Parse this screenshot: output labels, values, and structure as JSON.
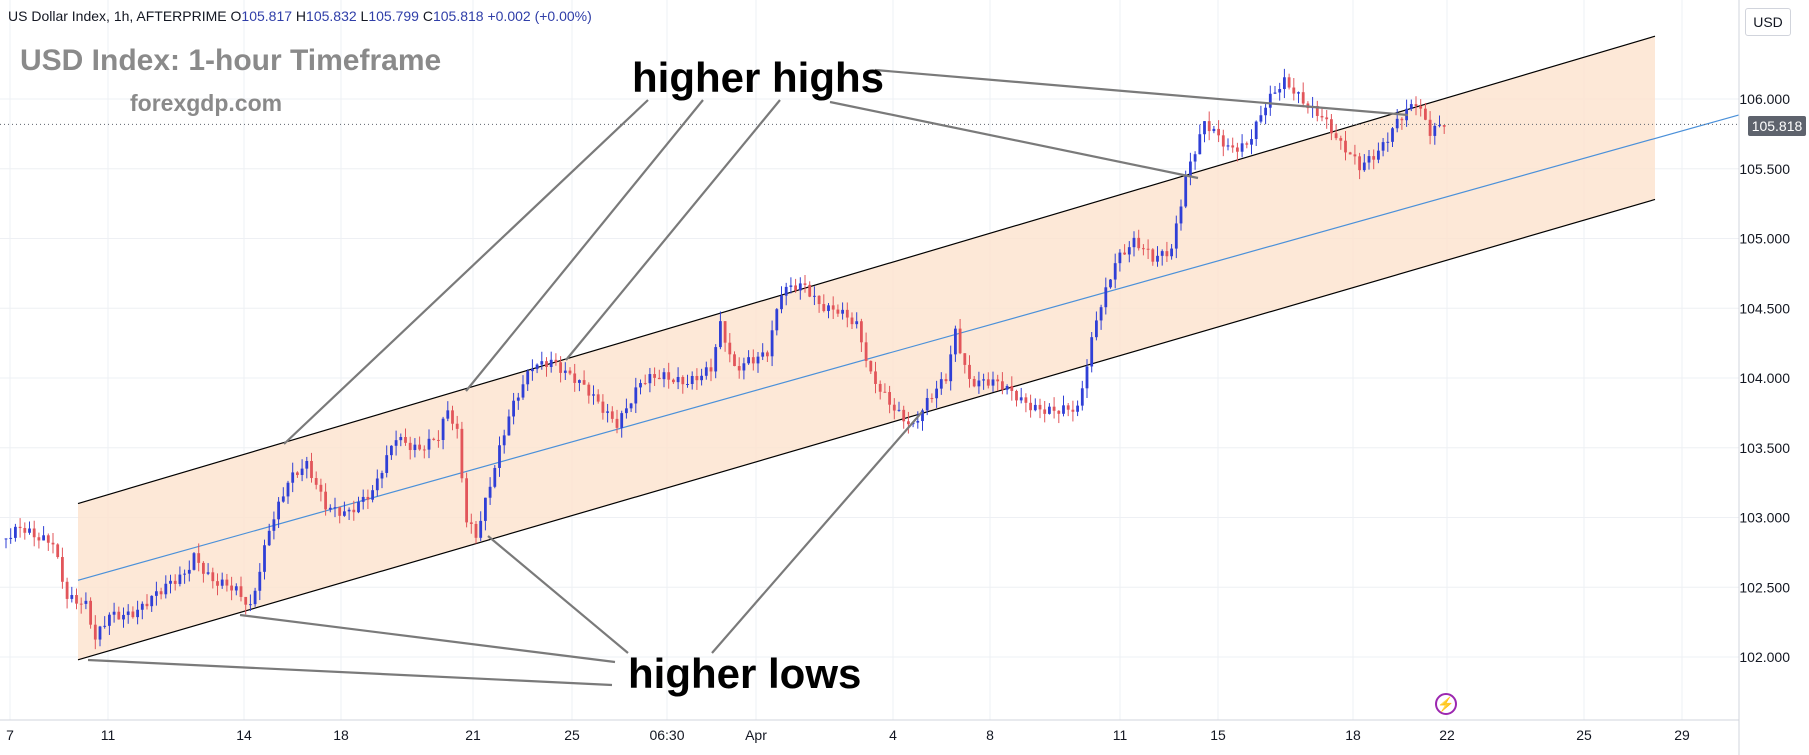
{
  "legend": {
    "symbol": "US Dollar Index, 1h, AFTERPRIME",
    "o_label": "O",
    "o_value": "105.817",
    "h_label": "H",
    "h_value": "105.832",
    "l_label": "L",
    "l_value": "105.799",
    "c_label": "C",
    "c_value": "105.818",
    "change": "+0.002 (+0.00%)"
  },
  "heading": {
    "title": "USD Index: 1-hour Timeframe",
    "site": "forexgdp.com"
  },
  "annotations": {
    "highs": "higher highs",
    "lows": "higher lows"
  },
  "currency_button": "USD",
  "price_tag": "105.818",
  "icons": {
    "event": "lightning-bolt-icon"
  },
  "colors": {
    "channel_fill": "#fde2cd",
    "channel_line": "#000000",
    "mid_line": "#4a90d9",
    "bull": "#2f3fd6",
    "bear": "#e2555a",
    "grid": "#eef0f4",
    "pointer": "#7a7a7a"
  },
  "chart_data": {
    "type": "candlestick",
    "series_name": "US Dollar Index, 1h",
    "x_tick_labels": [
      "7",
      "11",
      "14",
      "18",
      "21",
      "25",
      "06:30",
      "Apr",
      "4",
      "8",
      "11",
      "15",
      "18",
      "22",
      "25",
      "29"
    ],
    "y_tick_labels": [
      "106.000",
      "105.500",
      "105.000",
      "104.500",
      "104.000",
      "103.500",
      "103.000",
      "102.500",
      "102.000"
    ],
    "ylim": [
      101.6,
      106.6
    ],
    "last_price": 105.818,
    "channel": {
      "upper_start": 103.1,
      "upper_end": 106.45,
      "lower_start": 101.98,
      "lower_end": 105.28,
      "mid_start": 102.55,
      "mid_end": 105.85
    },
    "price_path": [
      [
        0,
        102.85
      ],
      [
        3,
        102.9
      ],
      [
        6,
        102.85
      ],
      [
        10,
        102.85
      ],
      [
        13,
        102.45
      ],
      [
        17,
        102.35
      ],
      [
        19,
        102.1
      ],
      [
        22,
        102.3
      ],
      [
        28,
        102.35
      ],
      [
        33,
        102.45
      ],
      [
        38,
        102.6
      ],
      [
        40,
        102.75
      ],
      [
        44,
        102.55
      ],
      [
        49,
        102.45
      ],
      [
        52,
        102.35
      ],
      [
        56,
        102.95
      ],
      [
        60,
        103.25
      ],
      [
        64,
        103.35
      ],
      [
        68,
        103.1
      ],
      [
        73,
        103.05
      ],
      [
        78,
        103.15
      ],
      [
        83,
        103.6
      ],
      [
        88,
        103.5
      ],
      [
        92,
        103.55
      ],
      [
        94,
        103.75
      ],
      [
        96,
        103.6
      ],
      [
        98,
        103.0
      ],
      [
        100,
        102.9
      ],
      [
        103,
        103.25
      ],
      [
        107,
        103.7
      ],
      [
        112,
        104.1
      ],
      [
        116,
        104.15
      ],
      [
        120,
        104.0
      ],
      [
        125,
        103.85
      ],
      [
        130,
        103.7
      ],
      [
        135,
        103.95
      ],
      [
        140,
        104.0
      ],
      [
        145,
        104.0
      ],
      [
        150,
        104.05
      ],
      [
        152,
        104.35
      ],
      [
        155,
        104.05
      ],
      [
        158,
        104.15
      ],
      [
        162,
        104.2
      ],
      [
        165,
        104.6
      ],
      [
        170,
        104.65
      ],
      [
        173,
        104.55
      ],
      [
        177,
        104.5
      ],
      [
        181,
        104.35
      ],
      [
        184,
        104.0
      ],
      [
        188,
        103.85
      ],
      [
        193,
        103.65
      ],
      [
        196,
        103.8
      ],
      [
        200,
        104.0
      ],
      [
        202,
        104.35
      ],
      [
        205,
        104.0
      ],
      [
        210,
        103.95
      ],
      [
        213,
        103.9
      ],
      [
        216,
        103.85
      ],
      [
        220,
        103.8
      ],
      [
        224,
        103.75
      ],
      [
        228,
        103.75
      ],
      [
        232,
        104.45
      ],
      [
        236,
        104.85
      ],
      [
        240,
        104.95
      ],
      [
        244,
        104.85
      ],
      [
        248,
        104.95
      ],
      [
        251,
        105.45
      ],
      [
        255,
        105.8
      ],
      [
        260,
        105.65
      ],
      [
        264,
        105.7
      ],
      [
        268,
        105.95
      ],
      [
        272,
        106.1
      ],
      [
        276,
        106.0
      ],
      [
        280,
        105.9
      ],
      [
        284,
        105.65
      ],
      [
        288,
        105.5
      ],
      [
        292,
        105.65
      ],
      [
        296,
        105.85
      ],
      [
        300,
        105.95
      ],
      [
        303,
        105.75
      ],
      [
        306,
        105.85
      ]
    ],
    "pointer_labels": {
      "highs_to": [
        "rising high at 14",
        "rising high at 21",
        "rising high at 25",
        "high at 15",
        "high at 20"
      ],
      "lows_to": [
        "low at 11",
        "low at 14",
        "low at 21",
        "low at 5 Apr"
      ]
    }
  }
}
